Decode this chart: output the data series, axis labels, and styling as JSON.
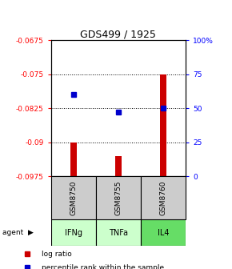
{
  "title": "GDS499 / 1925",
  "categories": [
    "IFNg",
    "TNFa",
    "IL4"
  ],
  "gsm_labels": [
    "GSM8750",
    "GSM8755",
    "GSM8760"
  ],
  "log_ratios": [
    -0.09,
    -0.093,
    -0.075
  ],
  "percentile_ranks": [
    60,
    47,
    50
  ],
  "ylim_left": [
    -0.0975,
    -0.0675
  ],
  "ylim_right": [
    0,
    100
  ],
  "yticks_left": [
    -0.0975,
    -0.09,
    -0.0825,
    -0.075,
    -0.0675
  ],
  "ytick_labels_left": [
    "-0.0975",
    "-0.09",
    "-0.0825",
    "-0.075",
    "-0.0675"
  ],
  "yticks_right": [
    0,
    25,
    50,
    75,
    100
  ],
  "ytick_labels_right": [
    "0",
    "25",
    "50",
    "75",
    "100%"
  ],
  "bar_color": "#cc0000",
  "point_color": "#0000cc",
  "agent_colors": [
    "#ccffcc",
    "#ccffcc",
    "#66dd66"
  ],
  "gsm_box_color": "#cccccc",
  "legend_bar_label": "log ratio",
  "legend_point_label": "percentile rank within the sample",
  "grid_lines": [
    -0.075,
    -0.0825,
    -0.09
  ],
  "bar_width": 0.15
}
